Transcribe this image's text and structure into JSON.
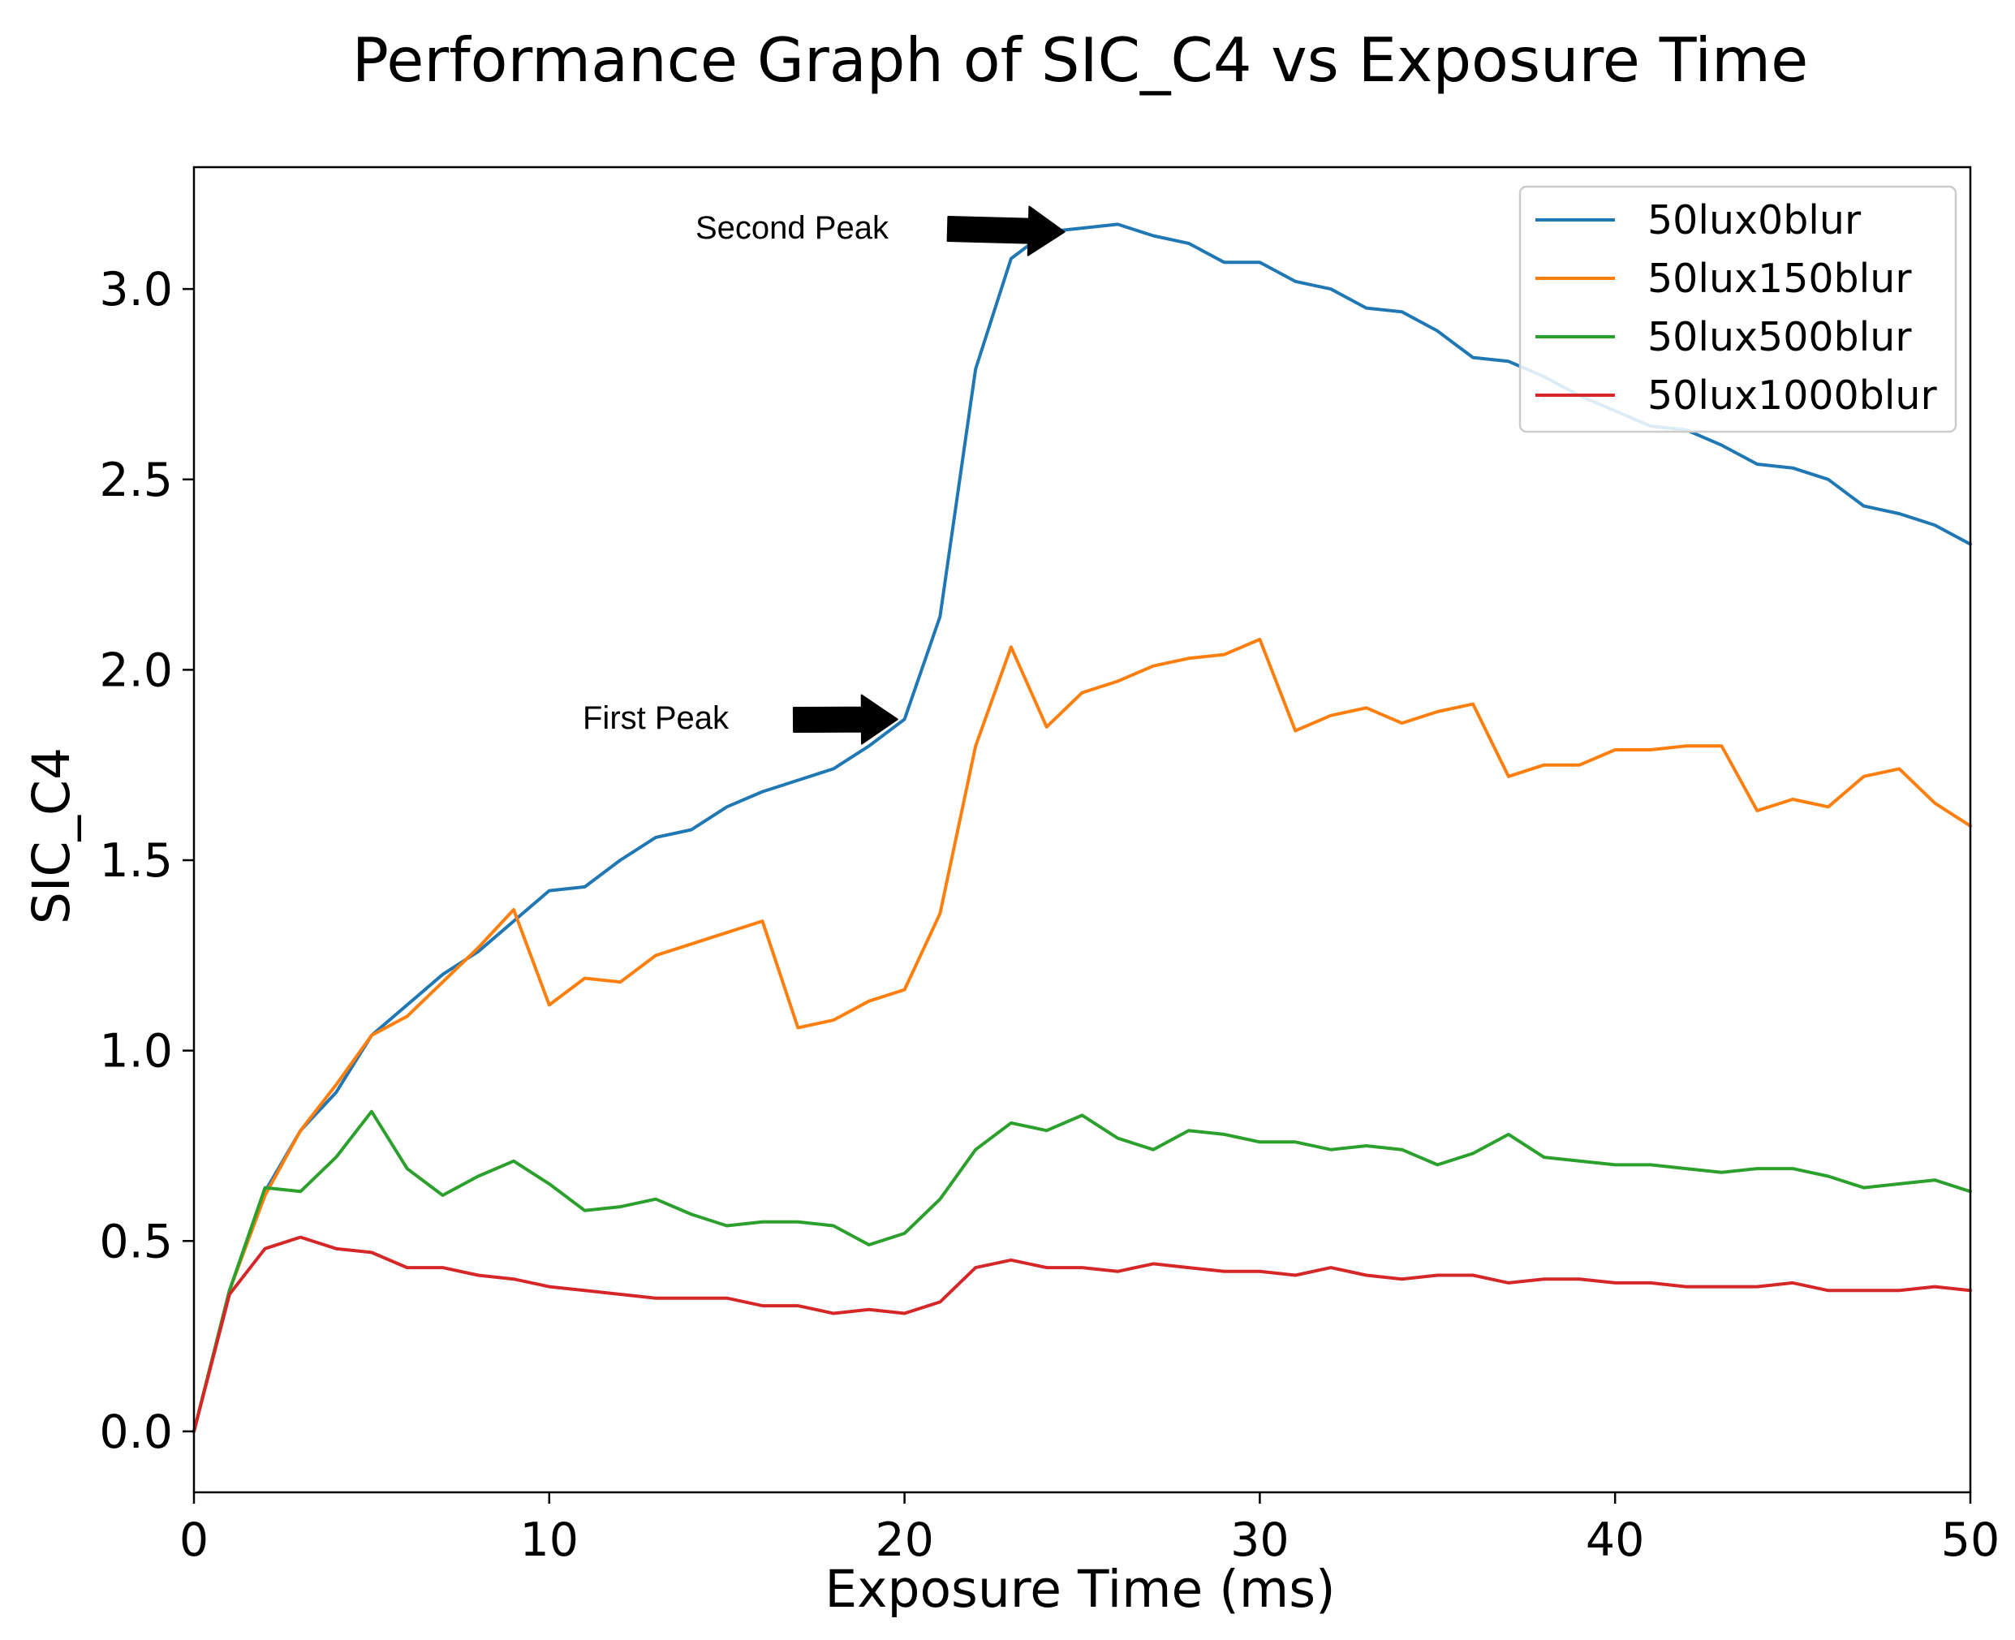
{
  "chart_data": {
    "type": "line",
    "title": "Performance Graph of SIC_C4 vs Exposure Time",
    "xlabel": "Exposure Time (ms)",
    "ylabel": "SIC_C4",
    "xlim": [
      0,
      50
    ],
    "ylim": [
      -0.16,
      3.32
    ],
    "xticks": [
      0,
      10,
      20,
      30,
      40,
      50
    ],
    "yticks": [
      0.0,
      0.5,
      1.0,
      1.5,
      2.0,
      2.5,
      3.0
    ],
    "xtick_labels": [
      "0",
      "10",
      "20",
      "30",
      "40",
      "50"
    ],
    "ytick_labels": [
      "0.0",
      "0.5",
      "1.0",
      "1.5",
      "2.0",
      "2.5",
      "3.0"
    ],
    "grid": false,
    "legend_position": "top-right",
    "x": [
      0,
      1,
      2,
      3,
      4,
      5,
      6,
      7,
      8,
      9,
      10,
      11,
      12,
      13,
      14,
      15,
      16,
      17,
      18,
      19,
      20,
      21,
      22,
      23,
      24,
      25,
      26,
      27,
      28,
      29,
      30,
      31,
      32,
      33,
      34,
      35,
      36,
      37,
      38,
      39,
      40,
      41,
      42,
      43,
      44,
      45,
      46,
      47,
      48,
      49,
      50
    ],
    "series": [
      {
        "name": "50lux0blur",
        "color": "#1f77b4",
        "values": [
          0.0,
          0.37,
          0.63,
          0.79,
          0.89,
          1.04,
          1.12,
          1.2,
          1.26,
          1.34,
          1.42,
          1.43,
          1.5,
          1.56,
          1.58,
          1.64,
          1.68,
          1.71,
          1.74,
          1.8,
          1.87,
          2.14,
          2.79,
          3.08,
          3.15,
          3.16,
          3.17,
          3.14,
          3.12,
          3.07,
          3.07,
          3.02,
          3.0,
          2.95,
          2.94,
          2.89,
          2.82,
          2.81,
          2.77,
          2.72,
          2.68,
          2.64,
          2.63,
          2.59,
          2.54,
          2.53,
          2.5,
          2.43,
          2.41,
          2.38,
          2.33
        ]
      },
      {
        "name": "50lux150blur",
        "color": "#ff7f0e",
        "values": [
          0.0,
          0.37,
          0.62,
          0.79,
          0.91,
          1.04,
          1.09,
          1.18,
          1.27,
          1.37,
          1.12,
          1.19,
          1.18,
          1.25,
          1.28,
          1.31,
          1.34,
          1.06,
          1.08,
          1.13,
          1.16,
          1.36,
          1.8,
          2.06,
          1.85,
          1.94,
          1.97,
          2.01,
          2.03,
          2.04,
          2.08,
          1.84,
          1.88,
          1.9,
          1.86,
          1.89,
          1.91,
          1.72,
          1.75,
          1.75,
          1.79,
          1.79,
          1.8,
          1.8,
          1.63,
          1.66,
          1.64,
          1.72,
          1.74,
          1.65,
          1.59
        ]
      },
      {
        "name": "50lux500blur",
        "color": "#2ca02c",
        "values": [
          0.0,
          0.37,
          0.64,
          0.63,
          0.72,
          0.84,
          0.69,
          0.62,
          0.67,
          0.71,
          0.65,
          0.58,
          0.59,
          0.61,
          0.57,
          0.54,
          0.55,
          0.55,
          0.54,
          0.49,
          0.52,
          0.61,
          0.74,
          0.81,
          0.79,
          0.83,
          0.77,
          0.74,
          0.79,
          0.78,
          0.76,
          0.76,
          0.74,
          0.75,
          0.74,
          0.7,
          0.73,
          0.78,
          0.72,
          0.71,
          0.7,
          0.7,
          0.69,
          0.68,
          0.69,
          0.69,
          0.67,
          0.64,
          0.65,
          0.66,
          0.63
        ]
      },
      {
        "name": "50lux1000blur",
        "color": "#d62728",
        "values": [
          0.0,
          0.36,
          0.48,
          0.51,
          0.48,
          0.47,
          0.43,
          0.43,
          0.41,
          0.4,
          0.38,
          0.37,
          0.36,
          0.35,
          0.35,
          0.35,
          0.33,
          0.33,
          0.31,
          0.32,
          0.31,
          0.34,
          0.43,
          0.45,
          0.43,
          0.43,
          0.42,
          0.44,
          0.43,
          0.42,
          0.42,
          0.41,
          0.43,
          0.41,
          0.4,
          0.41,
          0.41,
          0.39,
          0.4,
          0.4,
          0.39,
          0.39,
          0.38,
          0.38,
          0.38,
          0.39,
          0.37,
          0.37,
          0.37,
          0.38,
          0.37
        ]
      }
    ],
    "annotations": [
      {
        "text": "Second Peak",
        "x": 24.5,
        "y": 3.15
      },
      {
        "text": "First Peak",
        "x": 19.8,
        "y": 1.87
      }
    ]
  }
}
